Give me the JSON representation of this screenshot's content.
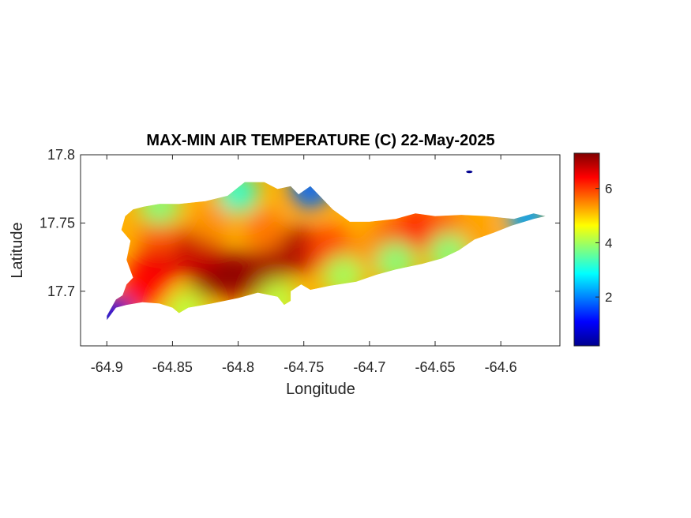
{
  "chart_data": {
    "type": "heatmap",
    "title": "MAX-MIN AIR TEMPERATURE (C) 22-May-2025",
    "xlabel": "Longitude",
    "ylabel": "Latitude",
    "xlim": [
      -64.92,
      -64.555
    ],
    "ylim": [
      17.66,
      17.8
    ],
    "xticks": [
      -64.9,
      -64.85,
      -64.8,
      -64.75,
      -64.7,
      -64.65,
      -64.6
    ],
    "xtick_labels": [
      "-64.9",
      "-64.85",
      "-64.8",
      "-64.75",
      "-64.7",
      "-64.65",
      "-64.6"
    ],
    "yticks": [
      17.8,
      17.75,
      17.7
    ],
    "ytick_labels": [
      "17.8",
      "17.75",
      "17.7"
    ],
    "colormap": "jet",
    "colorbar": {
      "range": [
        0.2,
        7.3
      ],
      "ticks": [
        2,
        4,
        6
      ],
      "tick_labels": [
        "2",
        "4",
        "6"
      ]
    },
    "grid": false,
    "island_outline_lonlat": [
      [
        -64.9,
        17.679
      ],
      [
        -64.893,
        17.688
      ],
      [
        -64.885,
        17.69
      ],
      [
        -64.873,
        17.692
      ],
      [
        -64.86,
        17.691
      ],
      [
        -64.85,
        17.688
      ],
      [
        -64.845,
        17.684
      ],
      [
        -64.838,
        17.688
      ],
      [
        -64.82,
        17.691
      ],
      [
        -64.8,
        17.695
      ],
      [
        -64.785,
        17.699
      ],
      [
        -64.77,
        17.696
      ],
      [
        -64.765,
        17.69
      ],
      [
        -64.76,
        17.693
      ],
      [
        -64.76,
        17.7
      ],
      [
        -64.752,
        17.705
      ],
      [
        -64.745,
        17.701
      ],
      [
        -64.73,
        17.704
      ],
      [
        -64.71,
        17.707
      ],
      [
        -64.695,
        17.712
      ],
      [
        -64.68,
        17.716
      ],
      [
        -64.66,
        17.72
      ],
      [
        -64.645,
        17.724
      ],
      [
        -64.632,
        17.73
      ],
      [
        -64.62,
        17.738
      ],
      [
        -64.605,
        17.743
      ],
      [
        -64.592,
        17.748
      ],
      [
        -64.575,
        17.753
      ],
      [
        -64.566,
        17.755
      ],
      [
        -64.575,
        17.757
      ],
      [
        -64.59,
        17.753
      ],
      [
        -64.61,
        17.755
      ],
      [
        -64.63,
        17.756
      ],
      [
        -64.65,
        17.755
      ],
      [
        -64.665,
        17.757
      ],
      [
        -64.68,
        17.753
      ],
      [
        -64.7,
        17.751
      ],
      [
        -64.715,
        17.751
      ],
      [
        -64.728,
        17.76
      ],
      [
        -64.738,
        17.77
      ],
      [
        -64.745,
        17.777
      ],
      [
        -64.754,
        17.771
      ],
      [
        -64.76,
        17.777
      ],
      [
        -64.77,
        17.775
      ],
      [
        -64.78,
        17.78
      ],
      [
        -64.795,
        17.78
      ],
      [
        -64.808,
        17.77
      ],
      [
        -64.825,
        17.766
      ],
      [
        -64.845,
        17.764
      ],
      [
        -64.86,
        17.764
      ],
      [
        -64.872,
        17.762
      ],
      [
        -64.88,
        17.76
      ],
      [
        -64.886,
        17.755
      ],
      [
        -64.889,
        17.745
      ],
      [
        -64.882,
        17.737
      ],
      [
        -64.885,
        17.723
      ],
      [
        -64.88,
        17.71
      ],
      [
        -64.885,
        17.705
      ],
      [
        -64.888,
        17.697
      ],
      [
        -64.893,
        17.694
      ],
      [
        -64.9,
        17.682
      ]
    ],
    "islet_lonlat": [
      [
        -64.624,
        17.7875
      ]
    ],
    "temperature_field": [
      {
        "lon": -64.82,
        "lat": 17.713,
        "value": 7.2
      },
      {
        "lon": -64.8,
        "lat": 17.712,
        "value": 7.2
      },
      {
        "lon": -64.78,
        "lat": 17.713,
        "value": 7.1
      },
      {
        "lon": -64.755,
        "lat": 17.73,
        "value": 7.0
      },
      {
        "lon": -64.86,
        "lat": 17.72,
        "value": 6.6
      },
      {
        "lon": -64.83,
        "lat": 17.73,
        "value": 6.8
      },
      {
        "lon": -64.87,
        "lat": 17.705,
        "value": 6.4
      },
      {
        "lon": -64.86,
        "lat": 17.745,
        "value": 5.8
      },
      {
        "lon": -64.82,
        "lat": 17.75,
        "value": 5.4
      },
      {
        "lon": -64.78,
        "lat": 17.745,
        "value": 5.6
      },
      {
        "lon": -64.73,
        "lat": 17.73,
        "value": 6.0
      },
      {
        "lon": -64.7,
        "lat": 17.73,
        "value": 5.4
      },
      {
        "lon": -64.68,
        "lat": 17.74,
        "value": 5.9
      },
      {
        "lon": -64.66,
        "lat": 17.746,
        "value": 6.2
      },
      {
        "lon": -64.64,
        "lat": 17.746,
        "value": 5.8
      },
      {
        "lon": -64.62,
        "lat": 17.744,
        "value": 5.3
      },
      {
        "lon": -64.8,
        "lat": 17.772,
        "value": 3.2
      },
      {
        "lon": -64.86,
        "lat": 17.763,
        "value": 3.8
      },
      {
        "lon": -64.745,
        "lat": 17.775,
        "value": 1.8
      },
      {
        "lon": -64.72,
        "lat": 17.712,
        "value": 4.0
      },
      {
        "lon": -64.68,
        "lat": 17.722,
        "value": 3.8
      },
      {
        "lon": -64.64,
        "lat": 17.728,
        "value": 3.8
      },
      {
        "lon": -64.58,
        "lat": 17.754,
        "value": 2.2
      },
      {
        "lon": -64.895,
        "lat": 17.682,
        "value": 1.0
      },
      {
        "lon": -64.84,
        "lat": 17.686,
        "value": 4.2
      },
      {
        "lon": -64.77,
        "lat": 17.694,
        "value": 4.2
      },
      {
        "lon": -64.624,
        "lat": 17.7875,
        "value": 0.3
      }
    ]
  }
}
